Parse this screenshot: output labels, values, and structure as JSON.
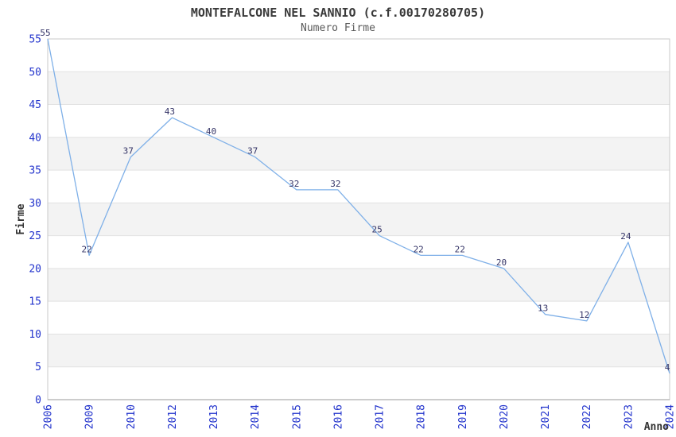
{
  "chart_data": {
    "type": "line",
    "title": "MONTEFALCONE NEL SANNIO (c.f.00170280705)",
    "subtitle": "Numero Firme",
    "xlabel": "Anno",
    "ylabel": "Firme",
    "categories": [
      "2006",
      "2009",
      "2010",
      "2012",
      "2013",
      "2014",
      "2015",
      "2016",
      "2017",
      "2018",
      "2019",
      "2020",
      "2021",
      "2022",
      "2023",
      "2024"
    ],
    "values": [
      55,
      22,
      37,
      43,
      40,
      37,
      32,
      32,
      25,
      22,
      22,
      20,
      13,
      12,
      24,
      4
    ],
    "ylim": [
      0,
      55
    ],
    "ytick_step": 5,
    "yticks": [
      0,
      5,
      10,
      15,
      20,
      25,
      30,
      35,
      40,
      45,
      50,
      55
    ],
    "grid": "alternating-horizontal-bands",
    "legend_position": "none",
    "colors": {
      "line": "#7fb0e8",
      "data_label": "#333366",
      "tick_label": "#2233cc",
      "band_fill": "#f3f3f3",
      "band_edge": "#e2e2e2",
      "plot_border": "#c8c8c8",
      "axis_line": "#9a9a9a",
      "title": "#3a3a3a",
      "subtitle": "#5a5a5a",
      "axis_title": "#333333",
      "background": "#ffffff"
    }
  }
}
